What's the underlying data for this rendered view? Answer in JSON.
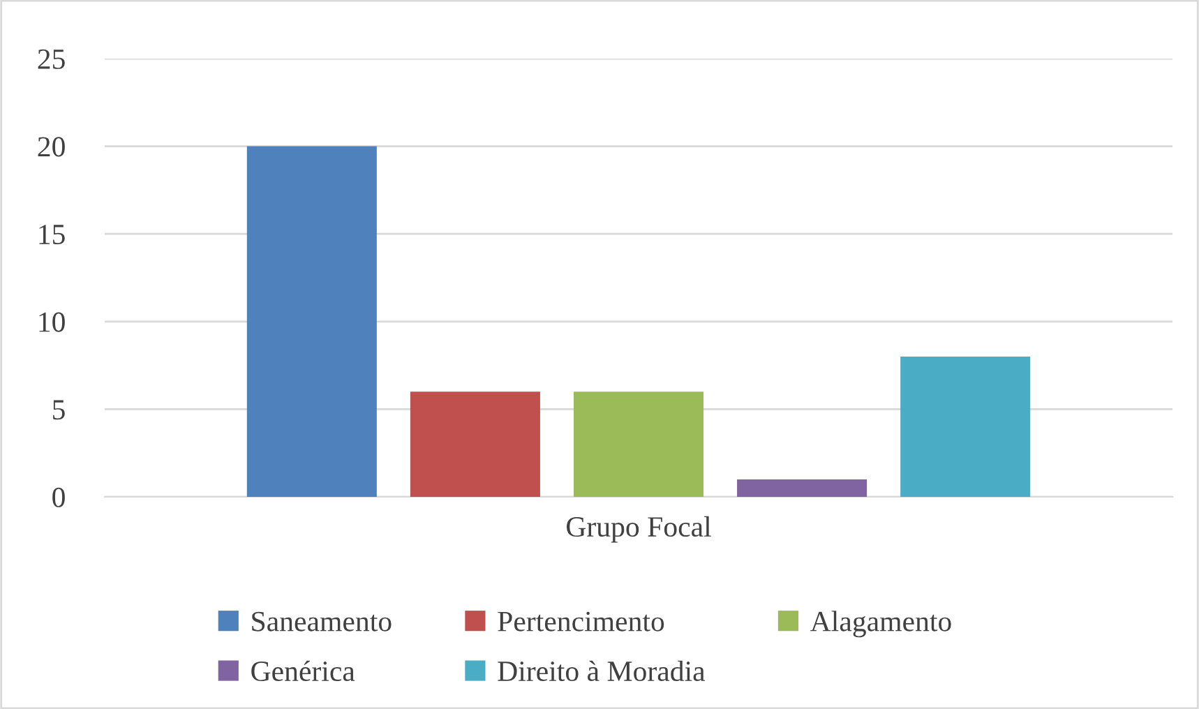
{
  "chart_data": {
    "type": "bar",
    "categories": [
      "Grupo Focal"
    ],
    "series": [
      {
        "name": "Saneamento",
        "color": "#4f81bd",
        "values": [
          20
        ]
      },
      {
        "name": "Pertencimento",
        "color": "#c0504d",
        "values": [
          6
        ]
      },
      {
        "name": "Alagamento",
        "color": "#9bbb59",
        "values": [
          6
        ]
      },
      {
        "name": "Genérica",
        "color": "#8064a2",
        "values": [
          1
        ]
      },
      {
        "name": "Direito à Moradia",
        "color": "#4bacc6",
        "values": [
          8
        ]
      }
    ],
    "ylim": [
      0,
      25
    ],
    "yticks": [
      0,
      5,
      10,
      15,
      20,
      25
    ],
    "grid": "y",
    "legend": "bottom"
  }
}
